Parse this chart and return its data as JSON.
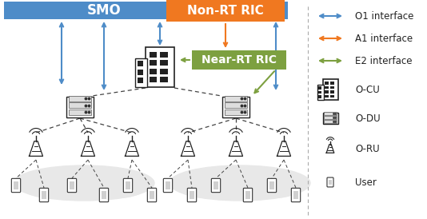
{
  "smo_color": "#4E8CC8",
  "non_rt_color": "#F07820",
  "near_rt_color": "#7DA040",
  "o1_color": "#4E8CC8",
  "a1_color": "#F07820",
  "e2_color": "#7DA040",
  "dashed_color": "#333333",
  "bg_color": "#FFFFFF",
  "legend_labels": [
    "O1 interface",
    "A1 interface",
    "E2 interface",
    "O-CU",
    "O-DU",
    "O-RU",
    "User"
  ]
}
